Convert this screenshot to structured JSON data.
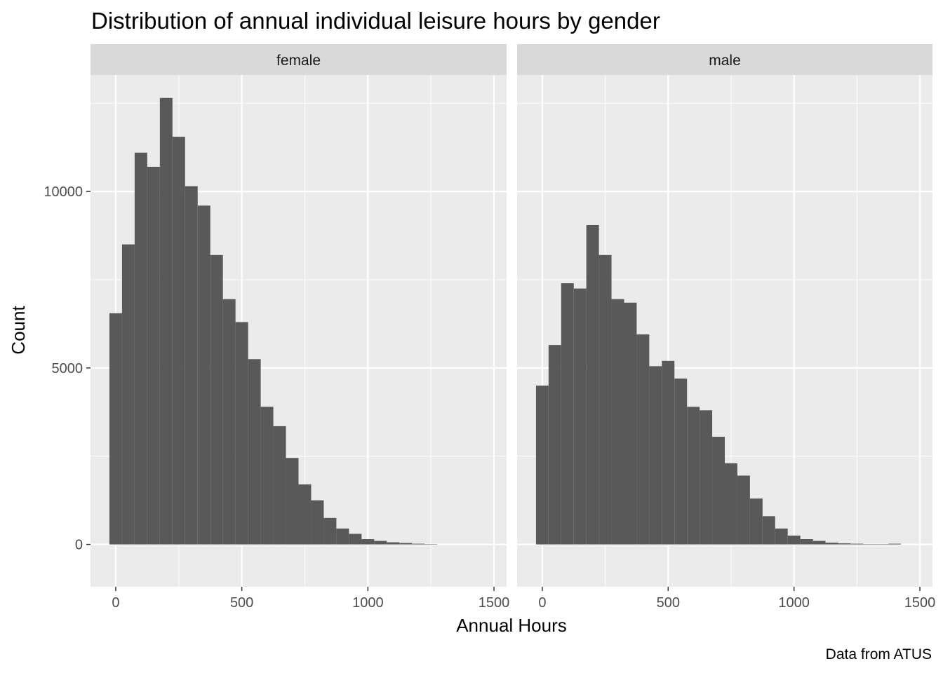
{
  "chart_data": {
    "type": "bar",
    "title": "Distribution of annual individual leisure hours by gender",
    "xlabel": "Annual Hours",
    "ylabel": "Count",
    "caption": "Data from ATUS",
    "xlim": [
      -100,
      1550
    ],
    "ylim": [
      -1200,
      13300
    ],
    "x_ticks": [
      "0",
      "500",
      "1000",
      "1500"
    ],
    "x_tick_values": [
      0,
      500,
      1000,
      1500
    ],
    "y_ticks": [
      "0",
      "5000",
      "10000"
    ],
    "y_tick_values": [
      0,
      5000,
      10000
    ],
    "grid": true,
    "bin_width": 50,
    "facets": [
      {
        "name": "female",
        "bin_centers": [
          0,
          50,
          100,
          150,
          200,
          250,
          300,
          350,
          400,
          450,
          500,
          550,
          600,
          650,
          700,
          750,
          800,
          850,
          900,
          950,
          1000,
          1050,
          1100,
          1150,
          1200,
          1250
        ],
        "values": [
          6550,
          8500,
          11100,
          10700,
          12650,
          11550,
          10150,
          9600,
          8200,
          6950,
          6300,
          5250,
          3900,
          3350,
          2450,
          1700,
          1250,
          750,
          450,
          300,
          150,
          100,
          60,
          40,
          20,
          10
        ]
      },
      {
        "name": "male",
        "bin_centers": [
          0,
          50,
          100,
          150,
          200,
          250,
          300,
          350,
          400,
          450,
          500,
          550,
          600,
          650,
          700,
          750,
          800,
          850,
          900,
          950,
          1000,
          1050,
          1100,
          1150,
          1200,
          1250,
          1300,
          1350,
          1400
        ],
        "values": [
          4500,
          5650,
          7400,
          7250,
          9050,
          8200,
          6950,
          6850,
          5950,
          5050,
          5200,
          4700,
          3900,
          3800,
          3050,
          2300,
          1950,
          1300,
          800,
          450,
          250,
          150,
          100,
          50,
          30,
          20,
          10,
          5,
          20
        ]
      }
    ]
  },
  "colors": {
    "bar": "#595959",
    "panel_bg": "#ebebeb",
    "strip_bg": "#d9d9d9",
    "grid_major": "#ffffff",
    "grid_minor": "#f5f5f5",
    "tick": "#333333"
  }
}
